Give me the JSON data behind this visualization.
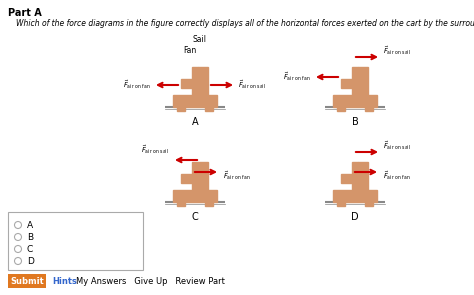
{
  "title_part": "Part A",
  "question": "Which of the force diagrams in the figure correctly displays all of the horizontal forces exerted on the cart by the surrounding air?",
  "bg_color": "#ffffff",
  "cart_color": "#d4956a",
  "arrow_color": "#cc0000",
  "ground_color": "#888888",
  "choices": [
    "A",
    "B",
    "C",
    "D"
  ],
  "submit_color": "#e07820",
  "submit_text": "Submit",
  "hints_text": "Hints",
  "other_links": "My Answers   Give Up   Review Part"
}
